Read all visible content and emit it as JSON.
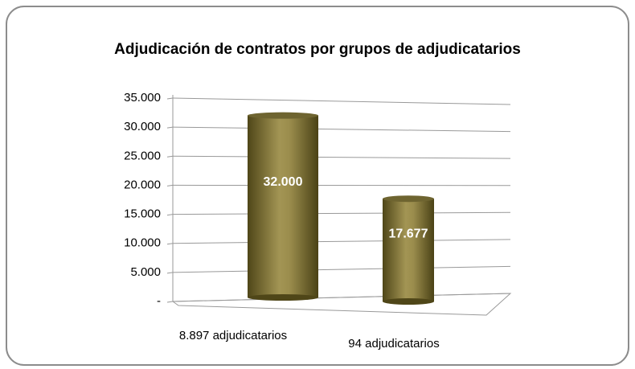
{
  "chart_data": {
    "type": "bar",
    "title": "Adjudicación de contratos por grupos de adjudicatarios",
    "categories": [
      "8.897 adjudicatarios",
      "94 adjudicatarios"
    ],
    "values": [
      32000,
      17677
    ],
    "value_labels": [
      "32.000",
      "17.677"
    ],
    "color": "#8a7d3c",
    "ylim": [
      0,
      35000
    ],
    "yticks": [
      {
        "value": 0,
        "label": "-"
      },
      {
        "value": 5000,
        "label": "5.000"
      },
      {
        "value": 10000,
        "label": "10.000"
      },
      {
        "value": 15000,
        "label": "15.000"
      },
      {
        "value": 20000,
        "label": "20.000"
      },
      {
        "value": 25000,
        "label": "25.000"
      },
      {
        "value": 30000,
        "label": "30.000"
      },
      {
        "value": 35000,
        "label": "35.000"
      }
    ],
    "grid": true
  }
}
